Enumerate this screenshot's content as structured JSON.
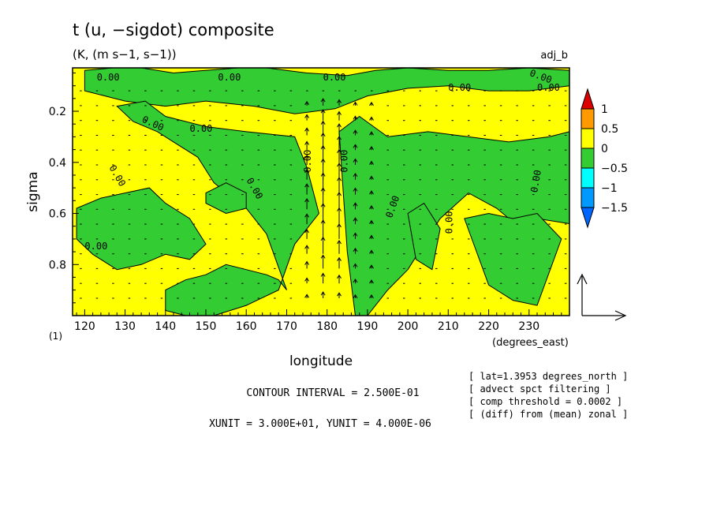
{
  "chart_data": {
    "type": "heatmap",
    "title": "t (u, −sigdot) composite",
    "units": "(K, (m s−1, s−1))",
    "run_label": "adj_b",
    "xlabel": "longitude",
    "x_units": "(degrees_east)",
    "ylabel": "sigma",
    "index_label": "(1)",
    "xlim": [
      117,
      240
    ],
    "ylim": [
      1.0,
      0.03
    ],
    "x_ticks": [
      "120",
      "130",
      "140",
      "150",
      "160",
      "170",
      "180",
      "190",
      "200",
      "210",
      "220",
      "230"
    ],
    "x_tick_values": [
      120,
      130,
      140,
      150,
      160,
      170,
      180,
      190,
      200,
      210,
      220,
      230
    ],
    "y_ticks": [
      "0.2",
      "0.4",
      "0.6",
      "0.8"
    ],
    "y_tick_values": [
      0.2,
      0.4,
      0.6,
      0.8
    ],
    "contour_label": "0.00",
    "contour_interval_text": "CONTOUR INTERVAL = 2.500E-01",
    "unit_text": "XUNIT = 3.000E+01, YUNIT = 4.000E-06",
    "notes": [
      "[ lat=1.3953 degrees_north ]",
      "[ advect spct filtering ]",
      "[ comp threshold = 0.0002 ]",
      "[ (diff) from (mean) zonal ]"
    ],
    "colorbar": {
      "labels": [
        "1",
        "0.5",
        "0",
        "−0.5",
        "−1",
        "−1.5"
      ],
      "colors": [
        "#dd0000",
        "#ff9900",
        "#ffff00",
        "#33cc33",
        "#00ffff",
        "#0099ff",
        "#0066ff"
      ]
    },
    "fill_colors": {
      "positive": "#ffff00",
      "negative": "#33cc33"
    },
    "wind_field_note": "upward arrows concentrated near 175-185E",
    "negative_regions": [
      {
        "lon": [
          120,
          127,
          134,
          142,
          150,
          158,
          165,
          175,
          185,
          192,
          200,
          210,
          220,
          230,
          240,
          240,
          230,
          220,
          210,
          200,
          190,
          182,
          172,
          162,
          150,
          140,
          130,
          120
        ],
        "sigma": [
          0.04,
          0.03,
          0.03,
          0.05,
          0.04,
          0.03,
          0.03,
          0.05,
          0.06,
          0.04,
          0.03,
          0.04,
          0.04,
          0.03,
          0.04,
          0.1,
          0.12,
          0.12,
          0.1,
          0.11,
          0.14,
          0.19,
          0.21,
          0.18,
          0.16,
          0.18,
          0.16,
          0.12
        ]
      },
      {
        "lon": [
          128,
          135,
          140,
          150,
          160,
          172,
          175,
          178,
          172,
          168,
          160,
          152,
          145,
          140,
          140,
          145,
          150,
          155,
          160,
          165,
          168,
          170,
          165,
          160,
          152,
          148,
          142,
          138,
          132,
          128
        ],
        "sigma": [
          0.18,
          0.16,
          0.22,
          0.26,
          0.28,
          0.3,
          0.42,
          0.6,
          0.72,
          0.9,
          0.96,
          1.0,
          1.0,
          0.98,
          0.9,
          0.86,
          0.84,
          0.8,
          0.82,
          0.84,
          0.86,
          0.9,
          0.68,
          0.58,
          0.48,
          0.38,
          0.32,
          0.28,
          0.24,
          0.18
        ]
      },
      {
        "lon": [
          183,
          188,
          195,
          205,
          215,
          225,
          235,
          240,
          240,
          232,
          228,
          222,
          215,
          208,
          200,
          195,
          190,
          187,
          185
        ],
        "sigma": [
          0.28,
          0.22,
          0.3,
          0.28,
          0.3,
          0.32,
          0.3,
          0.28,
          0.64,
          0.62,
          0.66,
          0.58,
          0.52,
          0.62,
          0.82,
          0.9,
          1.0,
          1.0,
          0.75
        ]
      },
      {
        "lon": [
          118,
          124,
          130,
          136,
          140,
          146,
          150,
          146,
          140,
          134,
          128,
          122,
          118
        ],
        "sigma": [
          0.58,
          0.54,
          0.52,
          0.5,
          0.56,
          0.62,
          0.72,
          0.78,
          0.76,
          0.8,
          0.82,
          0.76,
          0.7
        ]
      },
      {
        "lon": [
          150,
          155,
          160,
          160,
          155,
          150
        ],
        "sigma": [
          0.52,
          0.48,
          0.52,
          0.58,
          0.6,
          0.56
        ]
      },
      {
        "lon": [
          200,
          204,
          208,
          206,
          202
        ],
        "sigma": [
          0.6,
          0.56,
          0.66,
          0.82,
          0.78
        ]
      },
      {
        "lon": [
          214,
          220,
          226,
          232,
          238,
          232,
          226,
          220
        ],
        "sigma": [
          0.62,
          0.6,
          0.62,
          0.6,
          0.7,
          0.96,
          0.94,
          0.88
        ]
      }
    ]
  }
}
